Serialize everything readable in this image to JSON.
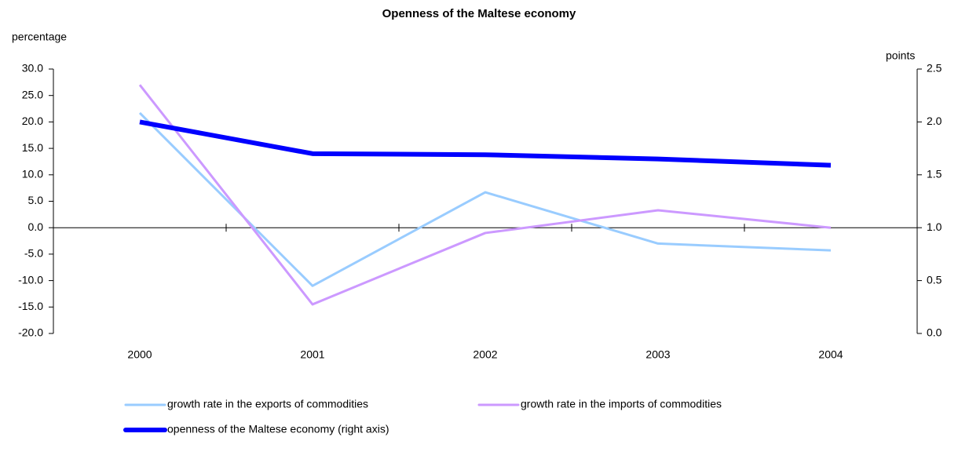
{
  "chart_data": {
    "type": "line",
    "title": "Openness of the Maltese economy",
    "y_label": "percentage",
    "y2_label": "points",
    "categories": [
      "2000",
      "2001",
      "2002",
      "2003",
      "2004"
    ],
    "series": [
      {
        "name": "growth rate in the exports of commodities",
        "color": "#99ccff",
        "width": 3,
        "values": [
          21.7,
          -11.0,
          6.7,
          -3.0,
          -4.3
        ]
      },
      {
        "name": "growth rate in the imports of commodities",
        "color": "#cc99ff",
        "width": 3,
        "values": [
          27.0,
          -14.5,
          -1.0,
          3.3,
          0.0
        ]
      },
      {
        "name": "openness of the Maltese economy (right axis)",
        "color": "#0000ff",
        "width": 6,
        "axis": "y2",
        "values": [
          2.0,
          1.7,
          1.69,
          1.65,
          1.59
        ]
      }
    ],
    "ylim": [
      -20,
      30
    ],
    "yticks": [
      {
        "value": -20,
        "label": "-20.0"
      },
      {
        "value": -15,
        "label": "-15.0"
      },
      {
        "value": -10,
        "label": "-10.0"
      },
      {
        "value": -5,
        "label": "-5.0"
      },
      {
        "value": 0,
        "label": "0.0"
      },
      {
        "value": 5,
        "label": "5.0"
      },
      {
        "value": 10,
        "label": "10.0"
      },
      {
        "value": 15,
        "label": "15.0"
      },
      {
        "value": 20,
        "label": "20.0"
      },
      {
        "value": 25,
        "label": "25.0"
      },
      {
        "value": 30,
        "label": "30.0"
      }
    ],
    "y2lim": [
      0,
      2.5
    ],
    "y2ticks": [
      {
        "value": 0,
        "label": "0.0"
      },
      0.5,
      {
        "value": 1,
        "label": "1.0"
      },
      1.5,
      {
        "value": 2,
        "label": "2.0"
      },
      2.5
    ],
    "grid": false,
    "legend": "bottom"
  }
}
